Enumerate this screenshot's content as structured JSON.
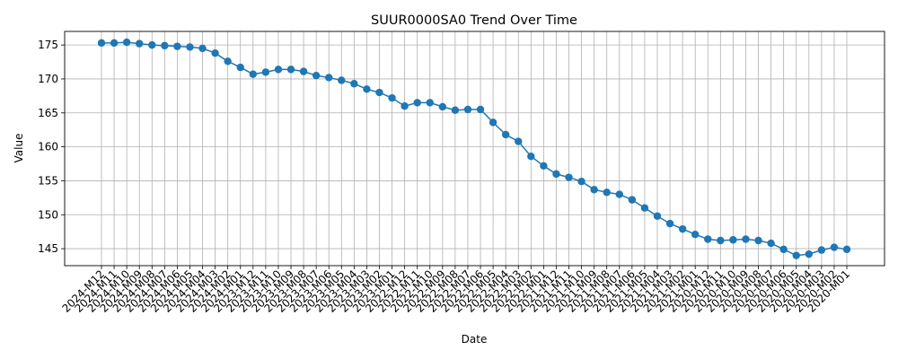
{
  "chart_data": {
    "type": "line",
    "title": "SUUR0000SA0 Trend Over Time",
    "xlabel": "Date",
    "ylabel": "Value",
    "ylim": [
      142.5,
      177
    ],
    "yticks": [
      145,
      150,
      155,
      160,
      165,
      170,
      175
    ],
    "grid": true,
    "x": [
      "2024-M12",
      "2024-M11",
      "2024-M10",
      "2024-M09",
      "2024-M08",
      "2024-M07",
      "2024-M06",
      "2024-M05",
      "2024-M04",
      "2024-M03",
      "2024-M02",
      "2024-M01",
      "2023-M12",
      "2023-M11",
      "2023-M10",
      "2023-M09",
      "2023-M08",
      "2023-M07",
      "2023-M06",
      "2023-M05",
      "2023-M04",
      "2023-M03",
      "2023-M02",
      "2023-M01",
      "2022-M12",
      "2022-M11",
      "2022-M10",
      "2022-M09",
      "2022-M08",
      "2022-M07",
      "2022-M06",
      "2022-M05",
      "2022-M04",
      "2022-M03",
      "2022-M02",
      "2022-M01",
      "2021-M12",
      "2021-M11",
      "2021-M10",
      "2021-M09",
      "2021-M08",
      "2021-M07",
      "2021-M06",
      "2021-M05",
      "2021-M04",
      "2021-M03",
      "2021-M02",
      "2021-M01",
      "2020-M12",
      "2020-M11",
      "2020-M10",
      "2020-M09",
      "2020-M08",
      "2020-M07",
      "2020-M06",
      "2020-M05",
      "2020-M04",
      "2020-M03",
      "2020-M02",
      "2020-M01"
    ],
    "series": [
      {
        "color": "#1f77b4",
        "values": [
          175.3,
          175.3,
          175.4,
          175.2,
          175.0,
          174.9,
          174.8,
          174.7,
          174.5,
          173.8,
          172.6,
          171.7,
          170.7,
          171.0,
          171.4,
          171.4,
          171.1,
          170.5,
          170.2,
          169.8,
          169.3,
          168.5,
          168.0,
          167.2,
          166.0,
          166.5,
          166.5,
          165.9,
          165.4,
          165.5,
          165.5,
          163.6,
          161.8,
          160.8,
          158.6,
          157.2,
          156.0,
          155.5,
          154.9,
          153.7,
          153.3,
          153.0,
          152.2,
          151.0,
          149.8,
          148.7,
          147.9,
          147.1,
          146.4,
          146.2,
          146.3,
          146.4,
          146.2,
          145.8,
          144.9,
          144.0,
          144.2,
          144.8,
          145.2,
          144.9
        ]
      }
    ]
  }
}
